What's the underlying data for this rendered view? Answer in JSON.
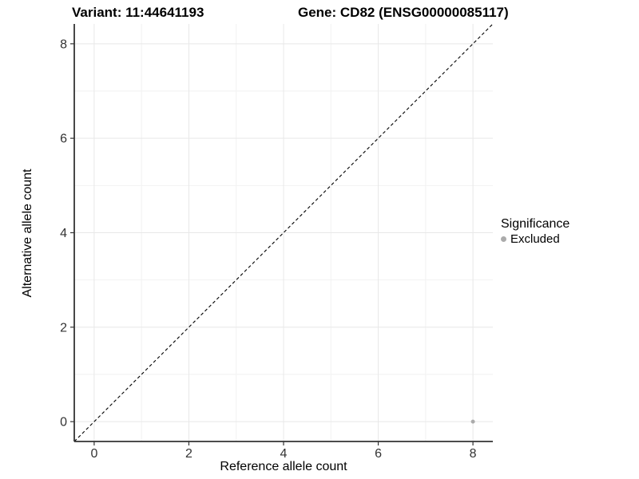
{
  "titles": {
    "variant": "Variant: 11:44641193",
    "gene": "Gene: CD82 (ENSG00000085117)"
  },
  "chart_data": {
    "type": "scatter",
    "xlabel": "Reference allele count",
    "ylabel": "Alternative allele count",
    "xlim": [
      -0.42,
      8.42
    ],
    "ylim": [
      -0.42,
      8.42
    ],
    "xticks": [
      0,
      2,
      4,
      6,
      8
    ],
    "yticks": [
      0,
      2,
      4,
      6,
      8
    ],
    "minor_grid": [
      1,
      3,
      5,
      7
    ],
    "grid": true,
    "diagonal_line": {
      "style": "dashed",
      "slope": 1,
      "intercept": 0
    },
    "series": [
      {
        "name": "Excluded",
        "points": [
          {
            "x": 8,
            "y": 0
          }
        ],
        "color": "#ababab"
      }
    ],
    "colors": {
      "major_grid": "#e8e8e8",
      "minor_grid": "#f2f2f2",
      "axis_line": "#333333",
      "tick_mark": "#333333",
      "tick_label": "#333333",
      "diagonal": "#000000"
    }
  },
  "legend": {
    "title": "Significance",
    "items": [
      {
        "label": "Excluded",
        "color": "#ababab"
      }
    ]
  }
}
